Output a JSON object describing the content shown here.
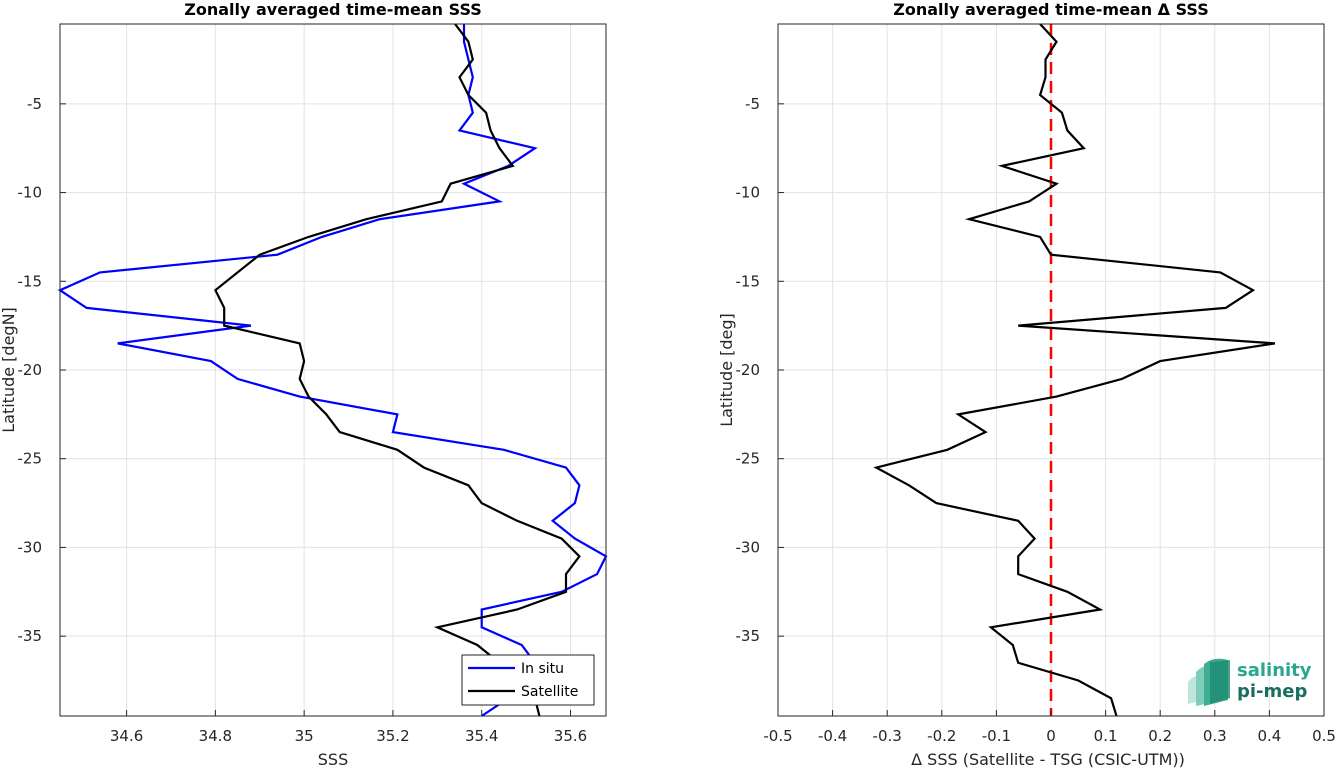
{
  "chart_data": [
    {
      "type": "line",
      "title": "Zonally averaged time-mean SSS",
      "xlabel": "SSS",
      "ylabel": "Latitude [degN]",
      "xlim": [
        34.45,
        35.68
      ],
      "ylim": [
        -39.5,
        -0.5
      ],
      "xticks": [
        34.6,
        34.8,
        35,
        35.2,
        35.4,
        35.6
      ],
      "xtick_labels": [
        "34.6",
        "34.8",
        "35",
        "35.2",
        "35.4",
        "35.6"
      ],
      "yticks": [
        -5,
        -10,
        -15,
        -20,
        -25,
        -30,
        -35
      ],
      "ytick_labels": [
        "-5",
        "-10",
        "-15",
        "-20",
        "-25",
        "-30",
        "-35"
      ],
      "grid": true,
      "legend": "bottom-right",
      "series": [
        {
          "name": "In situ",
          "color": "#0000ff",
          "points": [
            [
              35.36,
              -0.5
            ],
            [
              35.36,
              -1.5
            ],
            [
              35.37,
              -2.5
            ],
            [
              35.38,
              -3.5
            ],
            [
              35.37,
              -4.5
            ],
            [
              35.38,
              -5.5
            ],
            [
              35.35,
              -6.5
            ],
            [
              35.52,
              -7.5
            ],
            [
              35.46,
              -8.5
            ],
            [
              35.36,
              -9.5
            ],
            [
              35.44,
              -10.5
            ],
            [
              35.17,
              -11.5
            ],
            [
              35.04,
              -12.5
            ],
            [
              34.94,
              -13.5
            ],
            [
              34.54,
              -14.5
            ],
            [
              34.45,
              -15.5
            ],
            [
              34.51,
              -16.5
            ],
            [
              34.88,
              -17.5
            ],
            [
              34.58,
              -18.5
            ],
            [
              34.79,
              -19.5
            ],
            [
              34.85,
              -20.5
            ],
            [
              34.99,
              -21.5
            ],
            [
              35.21,
              -22.5
            ],
            [
              35.2,
              -23.5
            ],
            [
              35.45,
              -24.5
            ],
            [
              35.59,
              -25.5
            ],
            [
              35.62,
              -26.5
            ],
            [
              35.61,
              -27.5
            ],
            [
              35.56,
              -28.5
            ],
            [
              35.61,
              -29.5
            ],
            [
              35.68,
              -30.5
            ],
            [
              35.66,
              -31.5
            ],
            [
              35.58,
              -32.5
            ],
            [
              35.4,
              -33.5
            ],
            [
              35.4,
              -34.5
            ],
            [
              35.49,
              -35.5
            ],
            [
              35.52,
              -36.5
            ],
            [
              35.5,
              -37.5
            ],
            [
              35.46,
              -38.5
            ],
            [
              35.4,
              -39.5
            ]
          ]
        },
        {
          "name": "Satellite",
          "color": "#000000",
          "points": [
            [
              35.34,
              -0.5
            ],
            [
              35.37,
              -1.5
            ],
            [
              35.38,
              -2.5
            ],
            [
              35.35,
              -3.5
            ],
            [
              35.37,
              -4.5
            ],
            [
              35.41,
              -5.5
            ],
            [
              35.42,
              -6.5
            ],
            [
              35.44,
              -7.5
            ],
            [
              35.47,
              -8.5
            ],
            [
              35.33,
              -9.5
            ],
            [
              35.31,
              -10.5
            ],
            [
              35.14,
              -11.5
            ],
            [
              35.01,
              -12.5
            ],
            [
              34.9,
              -13.5
            ],
            [
              34.85,
              -14.5
            ],
            [
              34.8,
              -15.5
            ],
            [
              34.82,
              -16.5
            ],
            [
              34.82,
              -17.5
            ],
            [
              34.99,
              -18.5
            ],
            [
              35.0,
              -19.5
            ],
            [
              34.99,
              -20.5
            ],
            [
              35.01,
              -21.5
            ],
            [
              35.05,
              -22.5
            ],
            [
              35.08,
              -23.5
            ],
            [
              35.21,
              -24.5
            ],
            [
              35.27,
              -25.5
            ],
            [
              35.37,
              -26.5
            ],
            [
              35.4,
              -27.5
            ],
            [
              35.48,
              -28.5
            ],
            [
              35.58,
              -29.5
            ],
            [
              35.62,
              -30.5
            ],
            [
              35.59,
              -31.5
            ],
            [
              35.59,
              -32.5
            ],
            [
              35.48,
              -33.5
            ],
            [
              35.3,
              -34.5
            ],
            [
              35.39,
              -35.5
            ],
            [
              35.44,
              -36.5
            ],
            [
              35.47,
              -37.5
            ],
            [
              35.52,
              -38.5
            ],
            [
              35.53,
              -39.5
            ]
          ]
        }
      ]
    },
    {
      "type": "line",
      "title": "Zonally averaged time-mean Δ SSS",
      "xlabel": "Δ SSS (Satellite - TSG (CSIC-UTM))",
      "ylabel": "Latitude [deg]",
      "xlim": [
        -0.5,
        0.5
      ],
      "ylim": [
        -39.5,
        -0.5
      ],
      "xticks": [
        -0.5,
        -0.4,
        -0.3,
        -0.2,
        -0.1,
        0,
        0.1,
        0.2,
        0.3,
        0.4,
        0.5
      ],
      "xtick_labels": [
        "-0.5",
        "-0.4",
        "-0.3",
        "-0.2",
        "-0.1",
        "0",
        "0.1",
        "0.2",
        "0.3",
        "0.4",
        "0.5"
      ],
      "yticks": [
        -5,
        -10,
        -15,
        -20,
        -25,
        -30,
        -35
      ],
      "ytick_labels": [
        "-5",
        "-10",
        "-15",
        "-20",
        "-25",
        "-30",
        "-35"
      ],
      "grid": true,
      "reference_line": {
        "x": 0,
        "color": "#ff0000",
        "style": "dashed"
      },
      "series": [
        {
          "color": "#000000",
          "points": [
            [
              -0.02,
              -0.5
            ],
            [
              0.01,
              -1.5
            ],
            [
              -0.01,
              -2.5
            ],
            [
              -0.01,
              -3.5
            ],
            [
              -0.02,
              -4.5
            ],
            [
              0.02,
              -5.5
            ],
            [
              0.03,
              -6.5
            ],
            [
              0.06,
              -7.5
            ],
            [
              -0.09,
              -8.5
            ],
            [
              0.01,
              -9.5
            ],
            [
              -0.04,
              -10.5
            ],
            [
              -0.15,
              -11.5
            ],
            [
              -0.02,
              -12.5
            ],
            [
              0.0,
              -13.5
            ],
            [
              0.31,
              -14.5
            ],
            [
              0.37,
              -15.5
            ],
            [
              0.32,
              -16.5
            ],
            [
              -0.06,
              -17.5
            ],
            [
              0.41,
              -18.5
            ],
            [
              0.2,
              -19.5
            ],
            [
              0.13,
              -20.5
            ],
            [
              0.01,
              -21.5
            ],
            [
              -0.17,
              -22.5
            ],
            [
              -0.12,
              -23.5
            ],
            [
              -0.19,
              -24.5
            ],
            [
              -0.32,
              -25.5
            ],
            [
              -0.26,
              -26.5
            ],
            [
              -0.21,
              -27.5
            ],
            [
              -0.06,
              -28.5
            ],
            [
              -0.03,
              -29.5
            ],
            [
              -0.06,
              -30.5
            ],
            [
              -0.06,
              -31.5
            ],
            [
              0.03,
              -32.5
            ],
            [
              0.09,
              -33.5
            ],
            [
              -0.11,
              -34.5
            ],
            [
              -0.07,
              -35.5
            ],
            [
              -0.06,
              -36.5
            ],
            [
              0.05,
              -37.5
            ],
            [
              0.11,
              -38.5
            ],
            [
              0.12,
              -39.5
            ]
          ]
        }
      ]
    }
  ],
  "logo": {
    "line1": "salinity",
    "line2": "pi-mep",
    "color1": "#2aa68f",
    "color2": "#1a6e5e"
  }
}
